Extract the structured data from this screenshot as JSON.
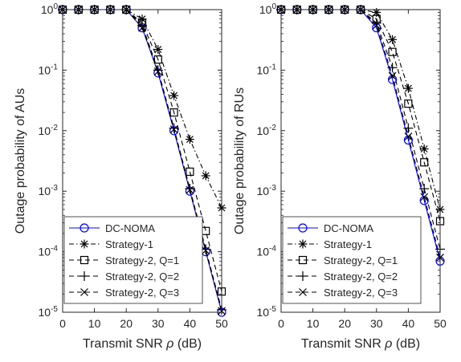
{
  "chart_data": [
    {
      "type": "line",
      "ylabel": "Outage probability of AUs",
      "xlabel": "Transmit SNR ρ (dB)",
      "x": [
        0,
        5,
        10,
        15,
        20,
        25,
        30,
        35,
        40,
        45,
        50
      ],
      "xlim": [
        0,
        50
      ],
      "ylim": [
        1e-05,
        1
      ],
      "yscale": "log",
      "xticks": [
        "0",
        "10",
        "20",
        "30",
        "40",
        "50"
      ],
      "yticks": [
        "10^-5",
        "10^-4",
        "10^-3",
        "10^-2",
        "10^-1",
        "10^0"
      ],
      "legend_position": "bottom-left",
      "series": [
        {
          "name": "DC-NOMA",
          "color": "#0000ff",
          "marker": "circle",
          "dash": "solid",
          "values": [
            1,
            1,
            1,
            1,
            1,
            0.5,
            0.09,
            0.01,
            0.001,
            0.0001,
            1e-05
          ]
        },
        {
          "name": "Strategy-1",
          "color": "#000000",
          "marker": "asterisk",
          "dash": "dashdot",
          "values": [
            1,
            1,
            1,
            1,
            1,
            0.7,
            0.22,
            0.038,
            0.0072,
            0.0018,
            0.00053
          ]
        },
        {
          "name": "Strategy-2, Q=1",
          "color": "#000000",
          "marker": "square",
          "dash": "dashed",
          "values": [
            1,
            1,
            1,
            1,
            1,
            0.6,
            0.15,
            0.02,
            0.0021,
            0.00022,
            2.2e-05
          ]
        },
        {
          "name": "Strategy-2, Q=2",
          "color": "#000000",
          "marker": "plus",
          "dash": "dashed",
          "values": [
            1,
            1,
            1,
            1,
            1,
            0.55,
            0.1,
            0.011,
            0.0011,
            0.00011,
            1.1e-05
          ]
        },
        {
          "name": "Strategy-2, Q=3",
          "color": "#000000",
          "marker": "cross",
          "dash": "dashed",
          "values": [
            1,
            1,
            1,
            1,
            1,
            0.5,
            0.095,
            0.0105,
            0.00105,
            0.000105,
            1.05e-05
          ]
        }
      ]
    },
    {
      "type": "line",
      "ylabel": "Outage probability of RUs",
      "xlabel": "Transmit SNR ρ (dB)",
      "x": [
        0,
        5,
        10,
        15,
        20,
        25,
        30,
        35,
        40,
        45,
        50
      ],
      "xlim": [
        0,
        50
      ],
      "ylim": [
        1e-05,
        1
      ],
      "yscale": "log",
      "xticks": [
        "0",
        "10",
        "20",
        "30",
        "40",
        "50"
      ],
      "yticks": [
        "10^-5",
        "10^-4",
        "10^-3",
        "10^-2",
        "10^-1",
        "10^0"
      ],
      "legend_position": "bottom-left",
      "series": [
        {
          "name": "DC-NOMA",
          "color": "#0000ff",
          "marker": "circle",
          "dash": "solid",
          "values": [
            1,
            1,
            1,
            1,
            1,
            1,
            0.5,
            0.07,
            0.007,
            0.0007,
            7e-05
          ]
        },
        {
          "name": "Strategy-1",
          "color": "#000000",
          "marker": "asterisk",
          "dash": "dashdot",
          "values": [
            1,
            1,
            1,
            1,
            1,
            1,
            0.9,
            0.32,
            0.05,
            0.005,
            0.0005
          ]
        },
        {
          "name": "Strategy-2, Q=1",
          "color": "#000000",
          "marker": "square",
          "dash": "dashed",
          "values": [
            1,
            1,
            1,
            1,
            1,
            1,
            0.7,
            0.2,
            0.028,
            0.003,
            0.00032
          ]
        },
        {
          "name": "Strategy-2, Q=2",
          "color": "#000000",
          "marker": "plus",
          "dash": "dashed",
          "values": [
            1,
            1,
            1,
            1,
            1,
            1,
            0.6,
            0.11,
            0.011,
            0.0011,
            0.00011
          ]
        },
        {
          "name": "Strategy-2, Q=3",
          "color": "#000000",
          "marker": "cross",
          "dash": "dashed",
          "values": [
            1,
            1,
            1,
            1,
            1,
            1,
            0.55,
            0.08,
            0.008,
            0.0008,
            8e-05
          ]
        }
      ]
    }
  ]
}
